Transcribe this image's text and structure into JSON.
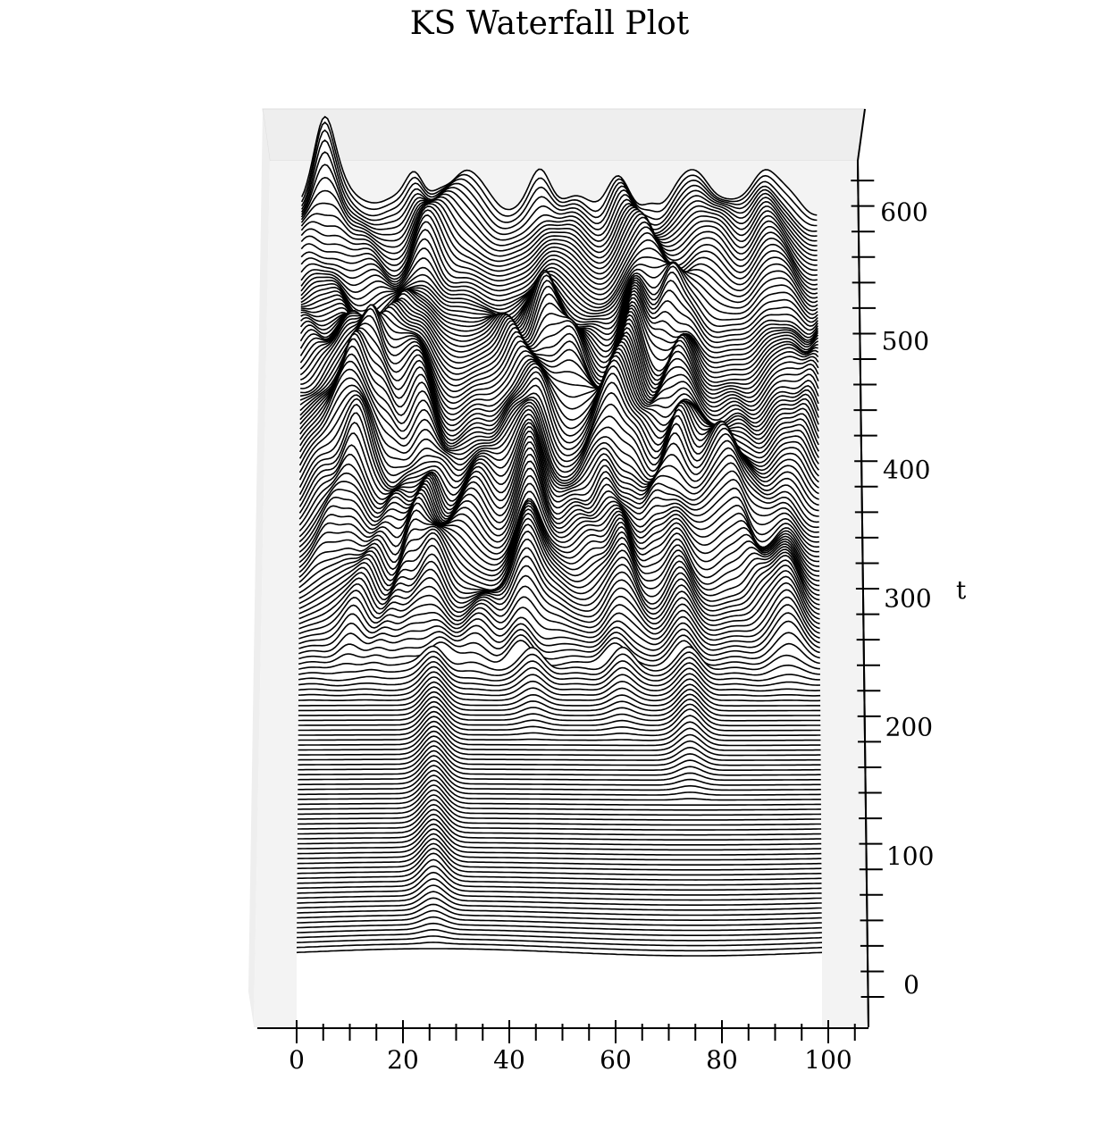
{
  "chart_data": {
    "type": "area",
    "title": "KS Waterfall Plot",
    "xlabel": "",
    "ylabel": "t",
    "xlim": [
      0,
      100
    ],
    "ylim": [
      0,
      620
    ],
    "x_ticks": [
      "0",
      "20",
      "40",
      "60",
      "80",
      "100"
    ],
    "y_ticks": [
      "0",
      "100",
      "200",
      "300",
      "400",
      "500",
      "600"
    ],
    "grid": false,
    "series_count": 150,
    "t_step": 4,
    "line_color": "#000000",
    "fill_color": "#ffffff",
    "pane_color": "#f3f3f3",
    "profile_peaks": [
      {
        "x": 26,
        "t_start": 0
      },
      {
        "x": 75,
        "t_start": 120
      },
      {
        "x": 45,
        "t_start": 170
      },
      {
        "x": 62,
        "t_start": 170
      },
      {
        "x": 8,
        "t_start": 220
      },
      {
        "x": 92,
        "t_start": 220
      }
    ]
  }
}
